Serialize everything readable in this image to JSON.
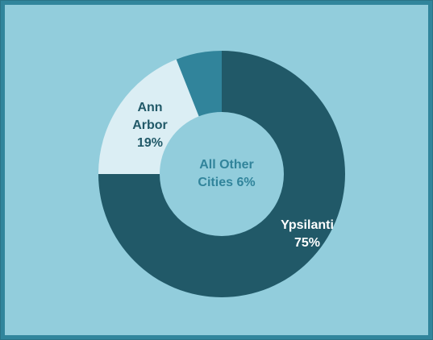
{
  "chart_data": {
    "type": "donut",
    "categories": [
      "Ypsilanti",
      "Ann Arbor",
      "All Other Cities"
    ],
    "values": [
      75,
      19,
      6
    ],
    "value_labels": [
      "75%",
      "19%",
      "6%"
    ],
    "colors": [
      "#215968",
      "#dbeef4",
      "#31849b"
    ],
    "label_colors": [
      "#ffffff",
      "#215968",
      "#31849b"
    ]
  }
}
